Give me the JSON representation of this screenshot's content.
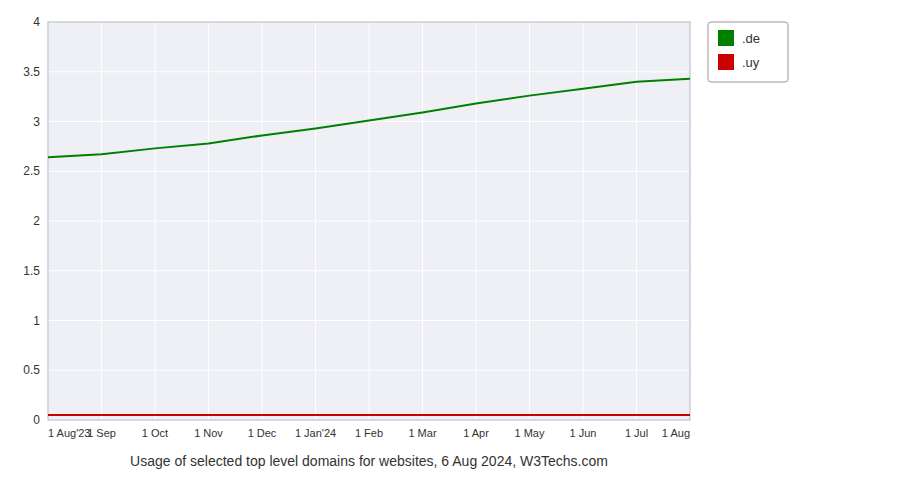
{
  "chart_data": {
    "type": "line",
    "title": "Usage of selected top level domains for websites, 6 Aug 2024, W3Techs.com",
    "categories": [
      "1 Aug'23",
      "1 Sep",
      "1 Oct",
      "1 Nov",
      "1 Dec",
      "1 Jan'24",
      "1 Feb",
      "1 Mar",
      "1 Apr",
      "1 May",
      "1 Jun",
      "1 Jul",
      "1 Aug"
    ],
    "series": [
      {
        "name": ".de",
        "color": "#008000",
        "values": [
          2.64,
          2.67,
          2.73,
          2.78,
          2.86,
          2.93,
          3.01,
          3.09,
          3.18,
          3.26,
          3.33,
          3.4,
          3.43
        ]
      },
      {
        "name": ".uy",
        "color": "#cc0000",
        "values": [
          0.05,
          0.05,
          0.05,
          0.05,
          0.05,
          0.05,
          0.05,
          0.05,
          0.05,
          0.05,
          0.05,
          0.05,
          0.05
        ]
      }
    ],
    "ylim": [
      0,
      4.0
    ],
    "yticks": [
      0,
      0.5,
      1.0,
      1.5,
      2.0,
      2.5,
      3.0,
      3.5,
      4.0
    ],
    "grid": true,
    "legend": "right"
  }
}
